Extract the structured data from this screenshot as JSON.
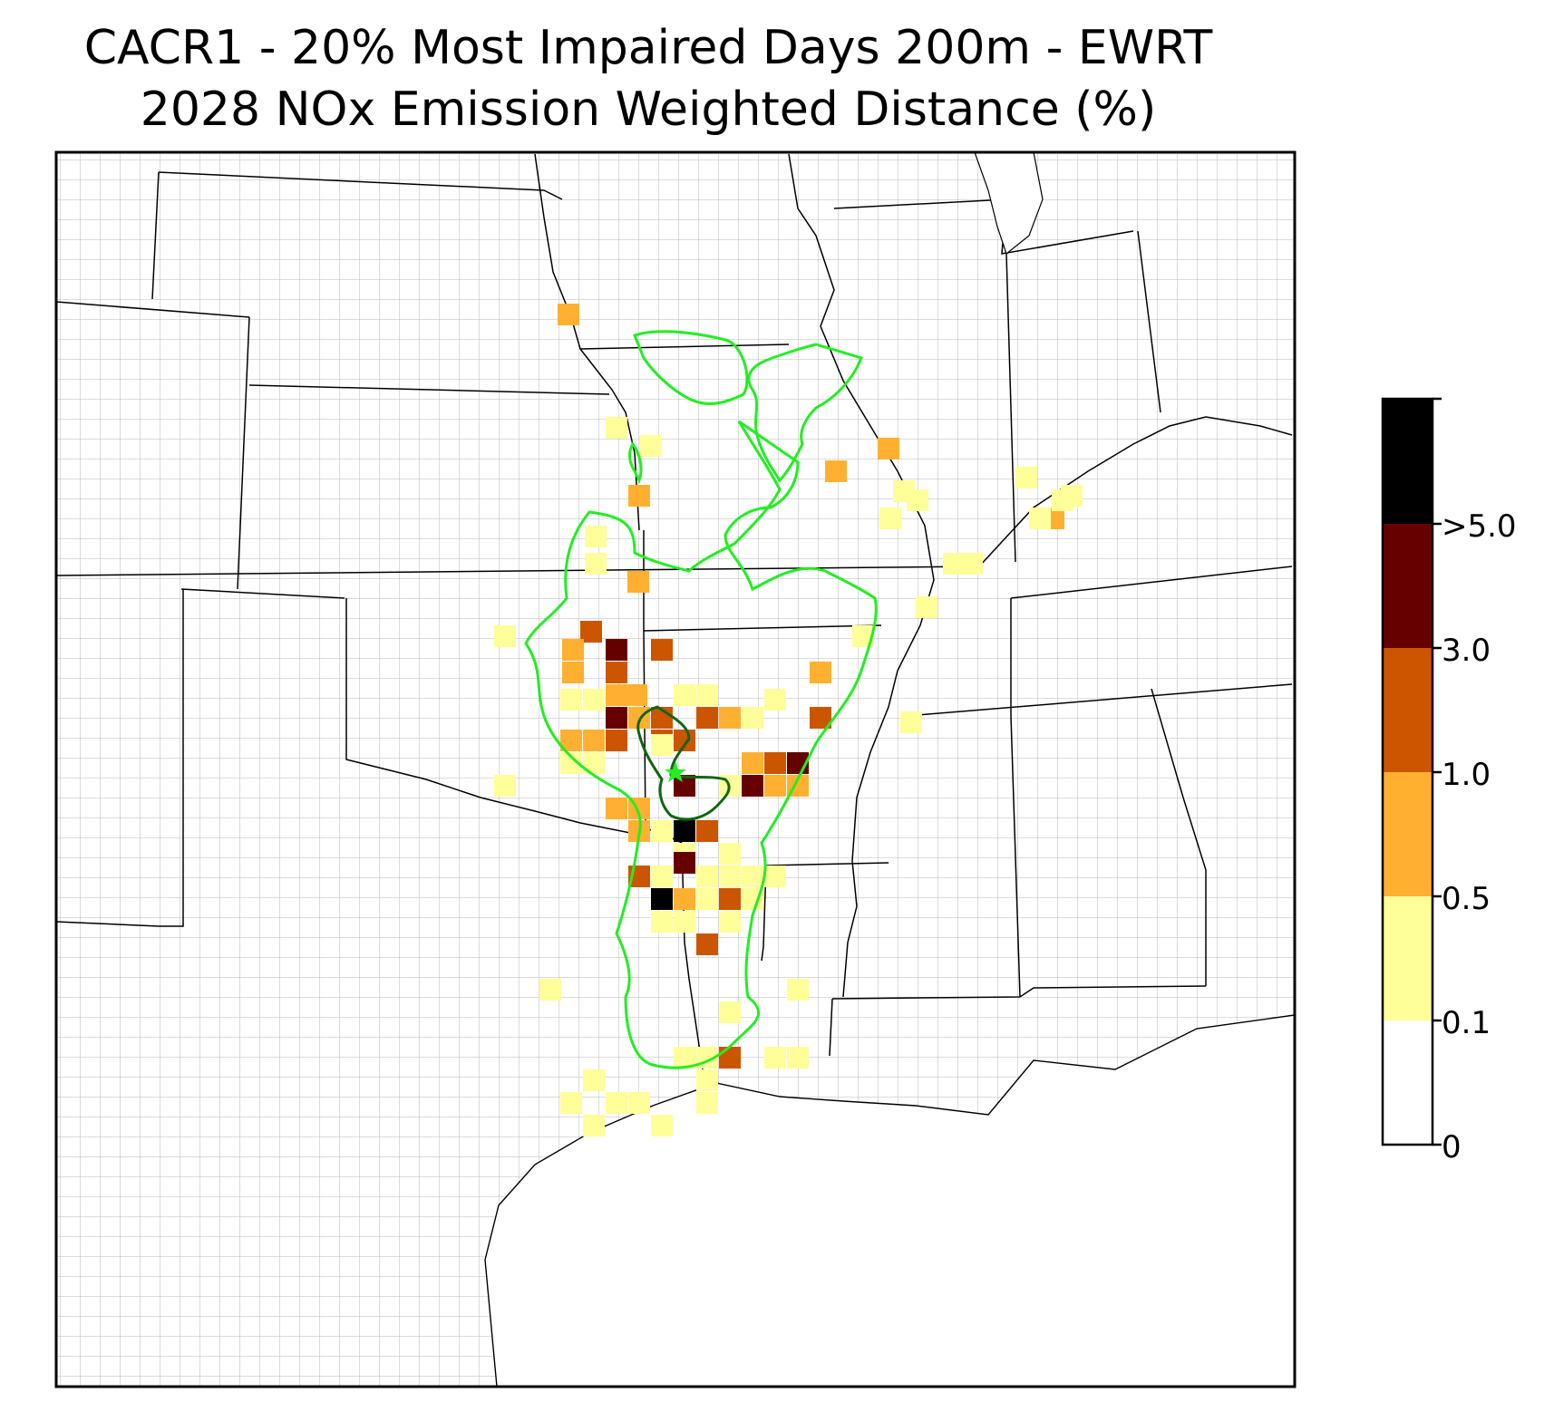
{
  "title": {
    "line1": "CACR1 - 20% Most Impaired Days 200m - EWRT",
    "line2": "2028 NOx Emission Weighted Distance (%)"
  },
  "colorbar": {
    "labels": [
      ">5.0",
      "3.0",
      "1.0",
      "0.5",
      "0.1",
      "0"
    ],
    "colors": [
      "#000000",
      "#660000",
      "#cc5500",
      "#ffb030",
      "#ffff99",
      "#ffffff"
    ]
  },
  "colors": {
    "state_lines": "#000000",
    "county_lines": "#999999",
    "outer_contour": "#22ee22",
    "inner_contour": "#116611",
    "site_marker": "#22ee22"
  },
  "map": {
    "site_marker_name": "star-icon",
    "categories": [
      "0.1-0.5",
      "0.5-1.0",
      "1.0-3.0",
      "3.0-5.0",
      ">5.0"
    ]
  }
}
